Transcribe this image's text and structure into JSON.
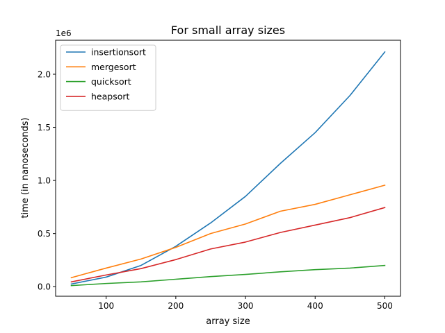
{
  "chart_data": {
    "type": "line",
    "title": "For small array sizes",
    "xlabel": "array size",
    "ylabel": "time (in nanoseconds)",
    "y_offset_text": "1e6",
    "x": [
      50,
      100,
      150,
      200,
      250,
      300,
      350,
      400,
      450,
      500
    ],
    "xlim": [
      27.5,
      522.5
    ],
    "ylim": [
      -0.09,
      2.32
    ],
    "y_scale_factor": 1000000,
    "x_ticks": [
      100,
      200,
      300,
      400,
      500
    ],
    "x_tick_labels": [
      "100",
      "200",
      "300",
      "400",
      "500"
    ],
    "y_ticks": [
      0.0,
      0.5,
      1.0,
      1.5,
      2.0
    ],
    "y_tick_labels": [
      "0.0",
      "0.5",
      "1.0",
      "1.5",
      "2.0"
    ],
    "grid": false,
    "legend_position": "top-left",
    "series": [
      {
        "name": "insertionsort",
        "color": "#1f77b4",
        "values": [
          0.025,
          0.09,
          0.2,
          0.38,
          0.6,
          0.85,
          1.16,
          1.45,
          1.8,
          2.21
        ]
      },
      {
        "name": "mergesort",
        "color": "#ff7f0e",
        "values": [
          0.085,
          0.175,
          0.26,
          0.37,
          0.5,
          0.59,
          0.71,
          0.775,
          0.865,
          0.955
        ]
      },
      {
        "name": "quicksort",
        "color": "#2ca02c",
        "values": [
          0.01,
          0.03,
          0.045,
          0.07,
          0.095,
          0.115,
          0.14,
          0.16,
          0.175,
          0.2
        ]
      },
      {
        "name": "heapsort",
        "color": "#d62728",
        "values": [
          0.045,
          0.11,
          0.17,
          0.255,
          0.355,
          0.42,
          0.51,
          0.58,
          0.65,
          0.745
        ]
      }
    ]
  }
}
